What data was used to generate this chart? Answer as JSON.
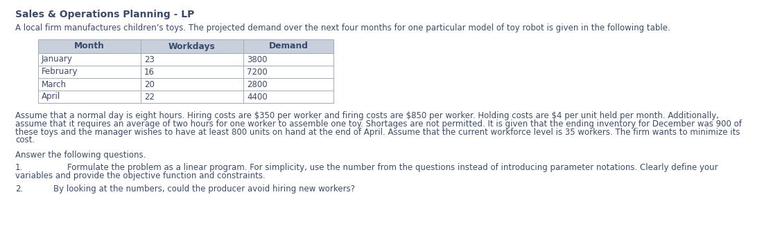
{
  "title": "Sales & Operations Planning - LP",
  "intro_text": "A local firm manufactures children’s toys. The projected demand over the next four months for one particular model of toy robot is given in the following table.",
  "table_headers": [
    "Month",
    "Workdays",
    "Demand"
  ],
  "table_rows": [
    [
      "January",
      "23",
      "3800"
    ],
    [
      "February",
      "16",
      "7200"
    ],
    [
      "March",
      "20",
      "2800"
    ],
    [
      "April",
      "22",
      "4400"
    ]
  ],
  "para_lines": [
    "Assume that a normal day is eight hours. Hiring costs are $350 per worker and firing costs are $850 per worker. Holding costs are $4 per unit held per month. Additionally,",
    "assume that it requires an average of two hours for one worker to assemble one toy. Shortages are not permitted. It is given that the ending inventory for December was 900 of",
    "these toys and the manager wishes to have at least 800 units on hand at the end of April. Assume that the current workforce level is 35 workers. The firm wants to minimize its",
    "cost."
  ],
  "answer_label": "Answer the following questions.",
  "q1_number": "1.",
  "q1_line1": "Formulate the problem as a linear program. For simplicity, use the number from the questions instead of introducing parameter notations. Clearly define your",
  "q1_line2": "variables and provide the objective function and constraints.",
  "q2_number": "2.",
  "q2_text": "By looking at the numbers, could the producer avoid hiring new workers?",
  "bg_color": "#ffffff",
  "text_color": "#3a4a6b",
  "header_bg": "#c8d0dc",
  "table_border_color": "#a0aaba",
  "title_fontsize": 10.0,
  "body_fontsize": 8.5,
  "table_header_fontsize": 8.8
}
